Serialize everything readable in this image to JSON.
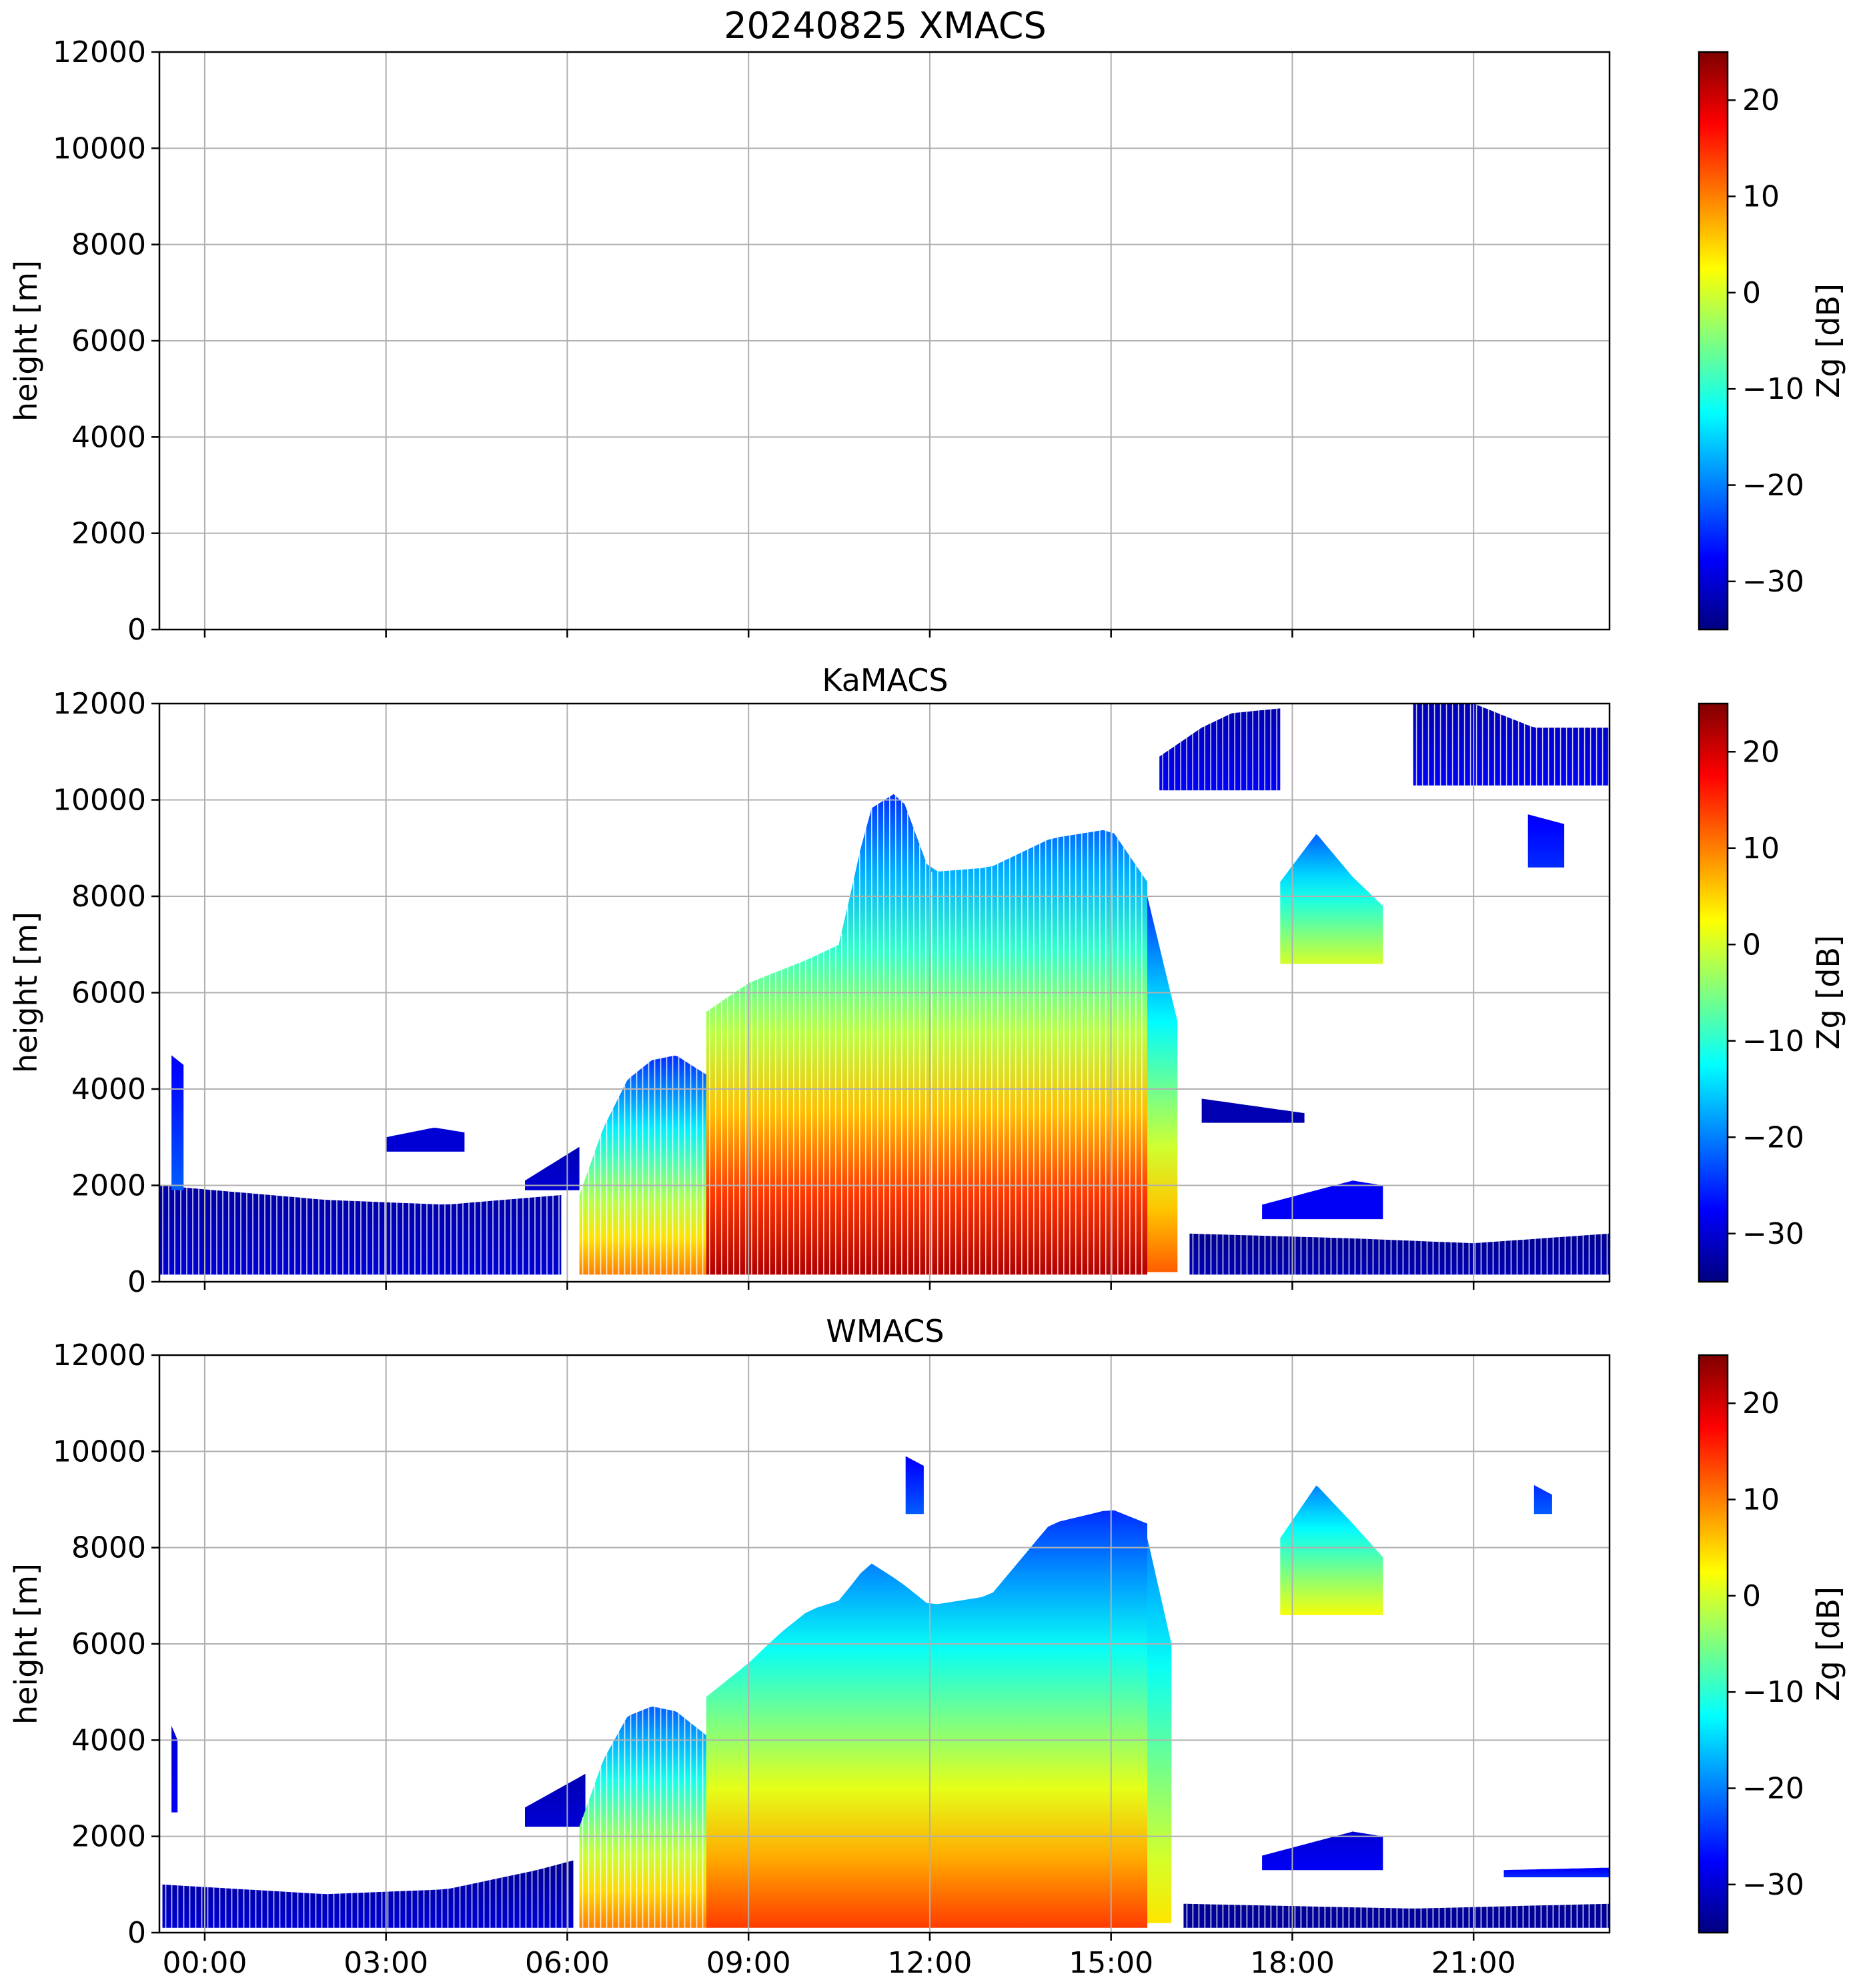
{
  "figure_title": "20240825 XMACS",
  "colormap": {
    "name": "jet",
    "stops": [
      "#00007f",
      "#0000ff",
      "#007fff",
      "#00ffff",
      "#7fff7f",
      "#ffff00",
      "#ff7f00",
      "#ff0000",
      "#7f0000"
    ]
  },
  "chart_data": [
    {
      "type": "heatmap",
      "title": "20240825 XMACS",
      "xlabel": "",
      "ylabel": "height [m]",
      "xlim_hours": [
        -0.75,
        23.25
      ],
      "ylim": [
        0,
        12000
      ],
      "yticks": [
        0,
        2000,
        4000,
        6000,
        8000,
        10000,
        12000
      ],
      "xticks_hours": [
        0,
        3,
        6,
        9,
        12,
        15,
        18,
        21
      ],
      "xtick_labels": [
        "00:00",
        "03:00",
        "06:00",
        "09:00",
        "12:00",
        "15:00",
        "18:00",
        "21:00"
      ],
      "show_xtick_labels": false,
      "grid": true,
      "colorbar": {
        "label": "Zg [dB]",
        "range": [
          -35,
          25
        ],
        "ticks": [
          -30,
          -20,
          -10,
          0,
          10,
          20
        ],
        "tick_labels": [
          "−30",
          "−20",
          "−10",
          "0",
          "10",
          "20"
        ]
      },
      "echo_regions": []
    },
    {
      "type": "heatmap",
      "title": "KaMACS",
      "xlabel": "",
      "ylabel": "height [m]",
      "xlim_hours": [
        -0.75,
        23.25
      ],
      "ylim": [
        0,
        12000
      ],
      "yticks": [
        0,
        2000,
        4000,
        6000,
        8000,
        10000,
        12000
      ],
      "xticks_hours": [
        0,
        3,
        6,
        9,
        12,
        15,
        18,
        21
      ],
      "xtick_labels": [
        "00:00",
        "03:00",
        "06:00",
        "09:00",
        "12:00",
        "15:00",
        "18:00",
        "21:00"
      ],
      "show_xtick_labels": false,
      "grid": true,
      "colorbar": {
        "label": "Zg [dB]",
        "range": [
          -35,
          25
        ],
        "ticks": [
          -30,
          -20,
          -10,
          0,
          10,
          20
        ],
        "tick_labels": [
          "−30",
          "−20",
          "−10",
          "0",
          "10",
          "20"
        ]
      },
      "echo_regions": [
        {
          "name": "low-clutter-morning",
          "t": [
            -0.75,
            5.9
          ],
          "top": [
            [
              -0.75,
              2000
            ],
            [
              2,
              1700
            ],
            [
              4,
              1600
            ],
            [
              5.9,
              1800
            ]
          ],
          "base": 150,
          "dbz_bottom": -30,
          "dbz_top": -33,
          "striped": true
        },
        {
          "name": "low-clutter-evening",
          "t": [
            16.3,
            23.25
          ],
          "top": [
            [
              16.3,
              1000
            ],
            [
              19,
              900
            ],
            [
              21,
              800
            ],
            [
              23.25,
              1000
            ]
          ],
          "base": 150,
          "dbz_bottom": -32,
          "dbz_top": -34,
          "striped": true
        },
        {
          "name": "thin-layer-4am",
          "t": [
            3,
            4.3
          ],
          "top": [
            [
              3,
              3000
            ],
            [
              3.8,
              3200
            ],
            [
              4.3,
              3100
            ]
          ],
          "base": 2700,
          "dbz_bottom": -30,
          "dbz_top": -30
        },
        {
          "name": "tall-streak-midnight",
          "t": [
            -0.55,
            -0.35
          ],
          "top": [
            [
              -0.55,
              4700
            ],
            [
              -0.35,
              4500
            ]
          ],
          "base": 1900,
          "dbz_bottom": -22,
          "dbz_top": -28
        },
        {
          "name": "ramp-6am",
          "t": [
            5.3,
            6.2
          ],
          "top": [
            [
              5.3,
              2100
            ],
            [
              6.2,
              2800
            ]
          ],
          "base": 1900,
          "dbz_bottom": -30,
          "dbz_top": -32
        },
        {
          "name": "convective-early",
          "t": [
            6.2,
            8.3
          ],
          "top": [
            [
              6.2,
              1800
            ],
            [
              6.6,
              3200
            ],
            [
              7,
              4200
            ],
            [
              7.4,
              4600
            ],
            [
              7.8,
              4700
            ],
            [
              8.3,
              4300
            ]
          ],
          "base": 150,
          "dbz_bottom": 10,
          "dbz_top": -25,
          "striped": true
        },
        {
          "name": "convective-main",
          "t": [
            8.3,
            15.6
          ],
          "top": [
            [
              8.3,
              5600
            ],
            [
              9,
              6200
            ],
            [
              10,
              6700
            ],
            [
              10.5,
              7000
            ],
            [
              11,
              9800
            ],
            [
              11.5,
              10200
            ],
            [
              12,
              8500
            ],
            [
              13,
              8600
            ],
            [
              14,
              9200
            ],
            [
              15,
              9400
            ],
            [
              15.6,
              8300
            ]
          ],
          "base": 150,
          "dbz_bottom": 22,
          "dbz_top": -25,
          "striped": true
        },
        {
          "name": "decay-16h",
          "t": [
            15.6,
            16.1
          ],
          "top": [
            [
              15.6,
              8000
            ],
            [
              16.1,
              5400
            ]
          ],
          "base": 200,
          "dbz_bottom": 12,
          "dbz_top": -25
        },
        {
          "name": "cirrus-16-18",
          "t": [
            15.8,
            17.8
          ],
          "top": [
            [
              15.8,
              10900
            ],
            [
              16.5,
              11500
            ],
            [
              17,
              11800
            ],
            [
              17.8,
              11900
            ]
          ],
          "base": 10200,
          "dbz_bottom": -28,
          "dbz_top": -32,
          "striped": true
        },
        {
          "name": "cirrus-night",
          "t": [
            20,
            23.25
          ],
          "top": [
            [
              20,
              12000
            ],
            [
              21,
              12000
            ],
            [
              22,
              11500
            ],
            [
              23.25,
              11500
            ]
          ],
          "base": 10300,
          "dbz_bottom": -28,
          "dbz_top": -32,
          "striped": true
        },
        {
          "name": "blob-22h",
          "t": [
            21.9,
            22.5
          ],
          "top": [
            [
              21.9,
              9700
            ],
            [
              22.5,
              9500
            ]
          ],
          "base": 8600,
          "dbz_bottom": -25,
          "dbz_top": -28
        },
        {
          "name": "cell-18-19",
          "t": [
            17.8,
            19.5
          ],
          "top": [
            [
              17.8,
              8300
            ],
            [
              18.4,
              9300
            ],
            [
              19,
              8400
            ],
            [
              19.5,
              7800
            ]
          ],
          "base": 6600,
          "dbz_bottom": 0,
          "dbz_top": -22
        },
        {
          "name": "layer-17-19",
          "t": [
            17.5,
            19.5
          ],
          "top": [
            [
              17.5,
              1600
            ],
            [
              19,
              2100
            ],
            [
              19.5,
              2000
            ]
          ],
          "base": 1300,
          "dbz_bottom": -28,
          "dbz_top": -28
        },
        {
          "name": "layer-mid-16-18",
          "t": [
            16.5,
            18.2
          ],
          "top": [
            [
              16.5,
              3800
            ],
            [
              18.2,
              3500
            ]
          ],
          "base": 3300,
          "dbz_bottom": -32,
          "dbz_top": -32
        }
      ]
    },
    {
      "type": "heatmap",
      "title": "WMACS",
      "xlabel": "",
      "ylabel": "height [m]",
      "xlim_hours": [
        -0.75,
        23.25
      ],
      "ylim": [
        0,
        12000
      ],
      "yticks": [
        0,
        2000,
        4000,
        6000,
        8000,
        10000,
        12000
      ],
      "xticks_hours": [
        0,
        3,
        6,
        9,
        12,
        15,
        18,
        21
      ],
      "xtick_labels": [
        "00:00",
        "03:00",
        "06:00",
        "09:00",
        "12:00",
        "15:00",
        "18:00",
        "21:00"
      ],
      "show_xtick_labels": true,
      "grid": true,
      "colorbar": {
        "label": "Zg [dB]",
        "range": [
          -35,
          25
        ],
        "ticks": [
          -30,
          -20,
          -10,
          0,
          10,
          20
        ],
        "tick_labels": [
          "−30",
          "−20",
          "−10",
          "0",
          "10",
          "20"
        ]
      },
      "echo_regions": [
        {
          "name": "low-noise-morning",
          "t": [
            -0.7,
            6.1
          ],
          "top": [
            [
              -0.7,
              1000
            ],
            [
              2,
              800
            ],
            [
              4,
              900
            ],
            [
              5.5,
              1300
            ],
            [
              6.1,
              1500
            ]
          ],
          "base": 100,
          "dbz_bottom": -30,
          "dbz_top": -34,
          "striped": true
        },
        {
          "name": "low-noise-evening",
          "t": [
            16.2,
            23.25
          ],
          "top": [
            [
              16.2,
              600
            ],
            [
              20,
              500
            ],
            [
              23.25,
              600
            ]
          ],
          "base": 100,
          "dbz_bottom": -33,
          "dbz_top": -34,
          "striped": true
        },
        {
          "name": "streak-midnight",
          "t": [
            -0.55,
            -0.45
          ],
          "top": [
            [
              -0.55,
              4300
            ],
            [
              -0.45,
              4000
            ]
          ],
          "base": 2500,
          "dbz_bottom": -28,
          "dbz_top": -30
        },
        {
          "name": "ramp-6am",
          "t": [
            5.3,
            6.3
          ],
          "top": [
            [
              5.3,
              2600
            ],
            [
              6.3,
              3300
            ]
          ],
          "base": 2200,
          "dbz_bottom": -30,
          "dbz_top": -32
        },
        {
          "name": "convective-early",
          "t": [
            6.2,
            8.3
          ],
          "top": [
            [
              6.2,
              2200
            ],
            [
              6.6,
              3600
            ],
            [
              7,
              4500
            ],
            [
              7.4,
              4700
            ],
            [
              7.8,
              4600
            ],
            [
              8.3,
              4100
            ]
          ],
          "base": 100,
          "dbz_bottom": 10,
          "dbz_top": -22,
          "striped": true
        },
        {
          "name": "convective-main",
          "t": [
            8.3,
            15.6
          ],
          "top": [
            [
              8.3,
              4900
            ],
            [
              9,
              5600
            ],
            [
              9.5,
              6200
            ],
            [
              10,
              6700
            ],
            [
              10.5,
              6900
            ],
            [
              11,
              7700
            ],
            [
              11.5,
              7300
            ],
            [
              12,
              6800
            ],
            [
              13,
              7000
            ],
            [
              14,
              8500
            ],
            [
              15,
              8800
            ],
            [
              15.6,
              8500
            ]
          ],
          "base": 100,
          "dbz_bottom": 14,
          "dbz_top": -25
        },
        {
          "name": "decay-16h",
          "t": [
            15.6,
            16.0
          ],
          "top": [
            [
              15.6,
              8200
            ],
            [
              16.0,
              6000
            ]
          ],
          "base": 200,
          "dbz_bottom": 4,
          "dbz_top": -20
        },
        {
          "name": "spike-11h",
          "t": [
            11.6,
            11.9
          ],
          "top": [
            [
              11.6,
              9900
            ],
            [
              11.9,
              9700
            ]
          ],
          "base": 8700,
          "dbz_bottom": -22,
          "dbz_top": -28
        },
        {
          "name": "cell-18-19",
          "t": [
            17.8,
            19.5
          ],
          "top": [
            [
              17.8,
              8200
            ],
            [
              18.4,
              9300
            ],
            [
              19,
              8500
            ],
            [
              19.5,
              7800
            ]
          ],
          "base": 6600,
          "dbz_bottom": 2,
          "dbz_top": -20
        },
        {
          "name": "layer-17-19",
          "t": [
            17.5,
            19.5
          ],
          "top": [
            [
              17.5,
              1600
            ],
            [
              19,
              2100
            ],
            [
              19.5,
              2000
            ]
          ],
          "base": 1300,
          "dbz_bottom": -28,
          "dbz_top": -30
        },
        {
          "name": "layer-21-23",
          "t": [
            21.5,
            23.25
          ],
          "top": [
            [
              21.5,
              1300
            ],
            [
              23.25,
              1350
            ]
          ],
          "base": 1150,
          "dbz_bottom": -25,
          "dbz_top": -28
        },
        {
          "name": "blob-22h",
          "t": [
            22.0,
            22.3
          ],
          "top": [
            [
              22.0,
              9300
            ],
            [
              22.3,
              9100
            ]
          ],
          "base": 8700,
          "dbz_bottom": -22,
          "dbz_top": -25
        }
      ]
    }
  ]
}
